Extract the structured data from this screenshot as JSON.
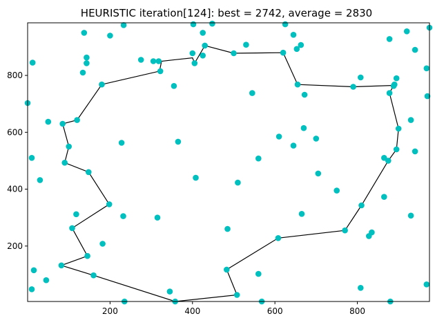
{
  "chart_data": {
    "type": "scatter",
    "title": "HEURISTIC iteration[124]: best = 2742, average = 2830",
    "xlabel": "",
    "ylabel": "",
    "xlim": [
      0,
      975
    ],
    "ylim": [
      5,
      985
    ],
    "xticks": [
      200,
      400,
      600,
      800
    ],
    "yticks": [
      200,
      400,
      600,
      800
    ],
    "grid": false,
    "point_color": "#00bfbf",
    "line_color": "#000000",
    "points": [
      [
        137,
        950
      ],
      [
        200,
        940
      ],
      [
        233,
        977
      ],
      [
        402,
        980
      ],
      [
        425,
        950
      ],
      [
        448,
        982
      ],
      [
        625,
        980
      ],
      [
        645,
        943
      ],
      [
        663,
        907
      ],
      [
        653,
        893
      ],
      [
        878,
        928
      ],
      [
        920,
        955
      ],
      [
        975,
        968
      ],
      [
        940,
        890
      ],
      [
        968,
        825
      ],
      [
        143,
        863
      ],
      [
        143,
        843
      ],
      [
        134,
        810
      ],
      [
        12,
        845
      ],
      [
        275,
        855
      ],
      [
        305,
        850
      ],
      [
        318,
        850
      ],
      [
        322,
        815
      ],
      [
        400,
        878
      ],
      [
        405,
        843
      ],
      [
        425,
        870
      ],
      [
        430,
        905
      ],
      [
        500,
        878
      ],
      [
        530,
        908
      ],
      [
        620,
        880
      ],
      [
        655,
        768
      ],
      [
        672,
        732
      ],
      [
        545,
        738
      ],
      [
        355,
        763
      ],
      [
        180,
        768
      ],
      [
        808,
        793
      ],
      [
        790,
        760
      ],
      [
        888,
        763
      ],
      [
        890,
        768
      ],
      [
        895,
        790
      ],
      [
        878,
        738
      ],
      [
        970,
        727
      ],
      [
        0,
        703
      ],
      [
        50,
        637
      ],
      [
        120,
        643
      ],
      [
        85,
        630
      ],
      [
        100,
        550
      ],
      [
        228,
        563
      ],
      [
        365,
        567
      ],
      [
        610,
        585
      ],
      [
        670,
        615
      ],
      [
        645,
        553
      ],
      [
        700,
        578
      ],
      [
        930,
        643
      ],
      [
        900,
        613
      ],
      [
        10,
        510
      ],
      [
        90,
        493
      ],
      [
        148,
        460
      ],
      [
        30,
        432
      ],
      [
        560,
        508
      ],
      [
        865,
        510
      ],
      [
        875,
        500
      ],
      [
        895,
        540
      ],
      [
        940,
        533
      ],
      [
        408,
        440
      ],
      [
        510,
        423
      ],
      [
        705,
        455
      ],
      [
        750,
        395
      ],
      [
        865,
        373
      ],
      [
        198,
        347
      ],
      [
        232,
        305
      ],
      [
        118,
        312
      ],
      [
        315,
        300
      ],
      [
        665,
        313
      ],
      [
        108,
        263
      ],
      [
        485,
        260
      ],
      [
        770,
        255
      ],
      [
        810,
        343
      ],
      [
        930,
        307
      ],
      [
        608,
        228
      ],
      [
        835,
        248
      ],
      [
        828,
        235
      ],
      [
        182,
        208
      ],
      [
        145,
        165
      ],
      [
        82,
        132
      ],
      [
        160,
        97
      ],
      [
        15,
        115
      ],
      [
        45,
        80
      ],
      [
        10,
        48
      ],
      [
        483,
        117
      ],
      [
        560,
        102
      ],
      [
        808,
        53
      ],
      [
        968,
        65
      ],
      [
        508,
        28
      ],
      [
        345,
        40
      ],
      [
        235,
        5
      ],
      [
        358,
        5
      ],
      [
        568,
        5
      ],
      [
        880,
        5
      ]
    ],
    "tour": [
      [
        180,
        768
      ],
      [
        320,
        815
      ],
      [
        325,
        850
      ],
      [
        400,
        862
      ],
      [
        405,
        843
      ],
      [
        430,
        905
      ],
      [
        500,
        878
      ],
      [
        620,
        880
      ],
      [
        655,
        768
      ],
      [
        790,
        760
      ],
      [
        888,
        765
      ],
      [
        878,
        738
      ],
      [
        900,
        613
      ],
      [
        895,
        540
      ],
      [
        875,
        500
      ],
      [
        810,
        343
      ],
      [
        770,
        255
      ],
      [
        608,
        228
      ],
      [
        483,
        117
      ],
      [
        508,
        28
      ],
      [
        358,
        5
      ],
      [
        160,
        97
      ],
      [
        82,
        132
      ],
      [
        145,
        165
      ],
      [
        108,
        263
      ],
      [
        198,
        347
      ],
      [
        148,
        460
      ],
      [
        90,
        493
      ],
      [
        100,
        550
      ],
      [
        85,
        630
      ],
      [
        120,
        643
      ],
      [
        180,
        768
      ]
    ]
  }
}
